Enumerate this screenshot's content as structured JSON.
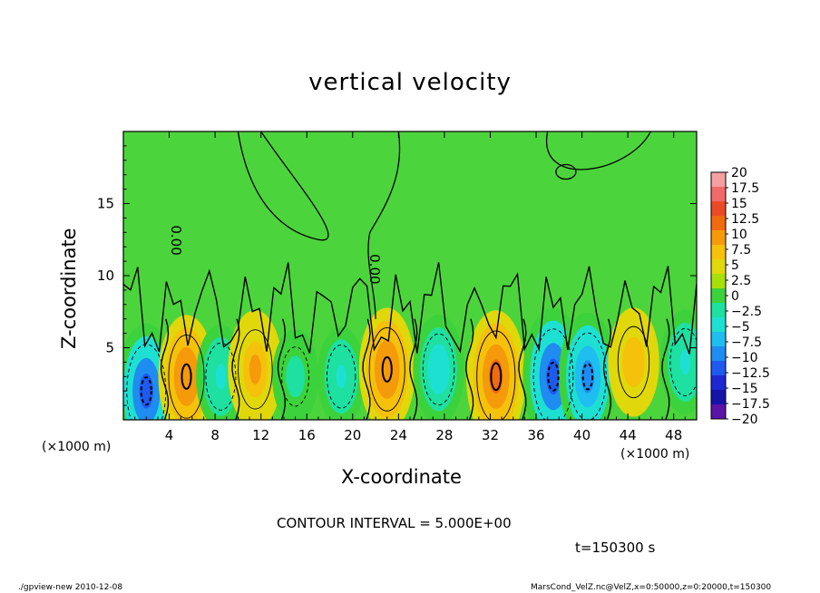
{
  "chart_data": {
    "type": "heatmap",
    "title": "vertical velocity",
    "xlabel": "X-coordinate",
    "ylabel": "Z-coordinate",
    "x_unit_label": "(×1000 m)",
    "xlim": [
      0,
      50
    ],
    "ylim": [
      0,
      20
    ],
    "x_ticks": [
      4,
      8,
      12,
      16,
      20,
      24,
      28,
      32,
      36,
      40,
      44,
      48
    ],
    "y_ticks": [
      5,
      10,
      15
    ],
    "contour_label": "0.00",
    "colorbar": {
      "labels": [
        "20",
        "17.5",
        "15",
        "12.5",
        "10",
        "7.5",
        "5",
        "2.5",
        "0",
        "−2.5",
        "−5",
        "−7.5",
        "−10",
        "−12.5",
        "−15",
        "−17.5",
        "−20"
      ],
      "colors": [
        "#f5a0a0",
        "#f06a6a",
        "#ea4b26",
        "#f06a10",
        "#f59a0a",
        "#f5c10a",
        "#e0d80a",
        "#a8e00a",
        "#3cd23c",
        "#1ee0a0",
        "#1ee0d2",
        "#1ebef0",
        "#1e8cf0",
        "#1e5af0",
        "#1e28d2",
        "#1414a8",
        "#5a14a8"
      ]
    },
    "cells": [
      {
        "x": 2,
        "z": 2,
        "w": -12.5
      },
      {
        "x": 5.5,
        "z": 3,
        "w": 10
      },
      {
        "x": 8.5,
        "z": 3,
        "w": -6
      },
      {
        "x": 11.5,
        "z": 3.5,
        "w": 9
      },
      {
        "x": 15,
        "z": 3,
        "w": -4
      },
      {
        "x": 19,
        "z": 3,
        "w": -5
      },
      {
        "x": 23,
        "z": 3.5,
        "w": 10
      },
      {
        "x": 27.5,
        "z": 3.5,
        "w": -7
      },
      {
        "x": 32.5,
        "z": 3,
        "w": 12
      },
      {
        "x": 37.5,
        "z": 3,
        "w": -13
      },
      {
        "x": 40.5,
        "z": 3,
        "w": -11
      },
      {
        "x": 44.5,
        "z": 4,
        "w": 7
      },
      {
        "x": 49,
        "z": 4,
        "w": -6
      }
    ]
  },
  "contour_interval_text": "CONTOUR INTERVAL = 5.000E+00",
  "time_text": "t=150300 s",
  "footer_left": "./gpview-new   2010-12-08",
  "footer_right": "MarsCond_VelZ.nc@VelZ,x=0:50000,z=0:20000,t=150300"
}
